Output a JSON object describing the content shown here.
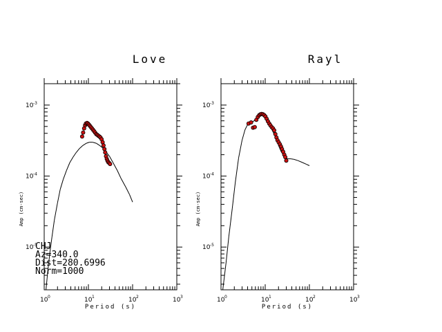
{
  "chart_data": [
    {
      "type": "scatter",
      "title": "Love",
      "xlabel": "Period (s)",
      "ylabel": "Amp (cm-sec)",
      "x_scale": "log",
      "y_scale": "log",
      "xlim": [
        1,
        1000
      ],
      "ylim": [
        2.5e-06,
        0.002
      ],
      "x_ticks": [
        "10",
        "10",
        "10",
        "10"
      ],
      "x_tick_exps": [
        "0",
        "1",
        "2",
        "3"
      ],
      "y_ticks": [
        "10",
        "10",
        "10"
      ],
      "y_tick_exps": [
        "-5",
        "-4",
        "-3"
      ],
      "annotation": [
        "CHJ",
        "Az=340.0",
        "Dist=280.6996",
        "Norm=1000"
      ],
      "curve_color": "#000000",
      "marker_color": "#cc1111",
      "series": [
        {
          "kind": "line",
          "x": [
            1.1,
            1.2,
            1.35,
            1.5,
            1.7,
            2.0,
            2.3,
            2.7,
            3.2,
            3.8,
            4.5,
            5.3,
            6.3,
            7.5,
            9.0,
            10.5,
            12.5,
            15,
            18,
            21,
            25,
            30,
            36,
            45,
            55,
            70,
            85,
            100
          ],
          "y": [
            2.5e-06,
            4.5e-06,
            8.5e-06,
            1.4e-05,
            2.4e-05,
            4.2e-05,
            6.5e-05,
            9e-05,
            0.00012,
            0.000155,
            0.000185,
            0.000215,
            0.000245,
            0.00027,
            0.00029,
            0.0003,
            0.0003,
            0.00029,
            0.00027,
            0.00025,
            0.00022,
            0.00019,
            0.000155,
            0.00012,
            9.2e-05,
            7e-05,
            5.5e-05,
            4.3e-05
          ]
        },
        {
          "kind": "points",
          "x": [
            7.2,
            7.6,
            8.0,
            8.4,
            8.8,
            9.3,
            9.8,
            10.3,
            10.8,
            11.4,
            12.0,
            12.7,
            13.4,
            14.2,
            15.0,
            15.9,
            16.8,
            17.8,
            18.8,
            19.9,
            21.0,
            22.0,
            23.0,
            24.0,
            25.0,
            26.0,
            27.0,
            28.0,
            29.5,
            31.0
          ],
          "y": [
            0.00036,
            0.00041,
            0.00047,
            0.00052,
            0.00055,
            0.00056,
            0.00055,
            0.00053,
            0.00051,
            0.00049,
            0.00047,
            0.00045,
            0.00043,
            0.00041,
            0.00039,
            0.00038,
            0.00037,
            0.00036,
            0.00035,
            0.00033,
            0.0003,
            0.00027,
            0.00024,
            0.000215,
            0.00019,
            0.000175,
            0.000165,
            0.000158,
            0.000153,
            0.000148
          ]
        }
      ]
    },
    {
      "type": "scatter",
      "title": "Rayl",
      "xlabel": "Period (s)",
      "ylabel": "Amp (cm-sec)",
      "x_scale": "log",
      "y_scale": "log",
      "xlim": [
        1,
        1000
      ],
      "ylim": [
        2.5e-06,
        0.002
      ],
      "x_ticks": [
        "10",
        "10",
        "10",
        "10"
      ],
      "x_tick_exps": [
        "0",
        "1",
        "2",
        "3"
      ],
      "y_ticks": [
        "10",
        "10",
        "10"
      ],
      "y_tick_exps": [
        "-5",
        "-4",
        "-3"
      ],
      "curve_color": "#000000",
      "marker_color": "#cc1111",
      "series": [
        {
          "kind": "line",
          "x": [
            1.1,
            1.3,
            1.5,
            1.8,
            2.1,
            2.5,
            3.0,
            3.5,
            4.0,
            4.6,
            5.2,
            6.0,
            7.0,
            8.0,
            9.0,
            10.0,
            11.5,
            13.0,
            15.0,
            17.5,
            20.0,
            23.0,
            27.0,
            32.0,
            38.0,
            45.0,
            55.0,
            70.0,
            85.0,
            100.0
          ],
          "y": [
            2.5e-06,
            6e-06,
            1.4e-05,
            3.5e-05,
            8e-05,
            0.00018,
            0.00032,
            0.00045,
            0.00053,
            0.00056,
            0.00058,
            0.00062,
            0.00068,
            0.00072,
            0.00071,
            0.00066,
            0.00058,
            0.0005,
            0.00042,
            0.00034,
            0.00027,
            0.00022,
            0.00019,
            0.000175,
            0.000175,
            0.000172,
            0.000165,
            0.000155,
            0.000147,
            0.00014
          ]
        },
        {
          "kind": "points",
          "x": [
            4.2,
            4.8,
            5.3,
            5.8,
            6.3,
            6.8,
            7.3,
            7.8,
            8.3,
            8.9,
            9.5,
            10.1,
            10.8,
            11.5,
            12.3,
            13.1,
            14.0,
            15.0,
            16.0,
            17.0,
            18.0,
            19.0,
            20.2,
            21.5,
            22.8,
            24.0,
            25.5,
            27.0,
            28.5,
            30.0
          ],
          "y": [
            0.00055,
            0.00057,
            0.00048,
            0.00049,
            0.00062,
            0.00068,
            0.00072,
            0.00074,
            0.00075,
            0.00074,
            0.00072,
            0.00069,
            0.00064,
            0.00059,
            0.00055,
            0.00052,
            0.00049,
            0.00047,
            0.00044,
            0.00039,
            0.00035,
            0.00032,
            0.0003,
            0.00028,
            0.00026,
            0.00024,
            0.00022,
            0.0002,
            0.000185,
            0.000165
          ]
        }
      ]
    }
  ]
}
